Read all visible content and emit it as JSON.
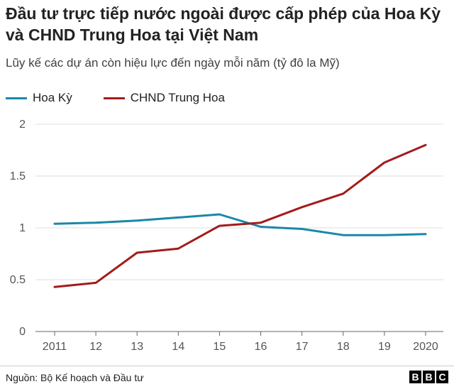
{
  "title": "Đầu tư trực tiếp nước ngoài được cấp phép của Hoa Kỳ và CHND Trung Hoa tại Việt Nam",
  "subtitle": "Lũy kế các dự án còn hiệu lực đến ngày mỗi năm (tỷ đô la Mỹ)",
  "source": "Nguồn: Bộ Kế hoạch và Đầu tư",
  "brand": [
    "B",
    "B",
    "C"
  ],
  "chart_data": {
    "type": "line",
    "title": "Đầu tư trực tiếp nước ngoài được cấp phép của Hoa Kỳ và CHND Trung Hoa tại Việt Nam",
    "subtitle": "Lũy kế các dự án còn hiệu lực đến ngày mỗi năm (tỷ đô la Mỹ)",
    "x": [
      2011,
      2012,
      2013,
      2014,
      2015,
      2016,
      2017,
      2018,
      2019,
      2020
    ],
    "x_tick_labels": [
      "2011",
      "12",
      "13",
      "14",
      "15",
      "16",
      "17",
      "18",
      "19",
      "2020"
    ],
    "y_ticks": [
      0,
      0.5,
      1,
      1.5,
      2
    ],
    "y_tick_labels": [
      "0",
      "0.5",
      "1",
      "1.5",
      "2"
    ],
    "ylim": [
      0,
      2
    ],
    "grid": "horizontal",
    "legend_position": "top-left",
    "series": [
      {
        "name": "Hoa Kỳ",
        "color": "#1a87a8",
        "values": [
          1.04,
          1.05,
          1.07,
          1.1,
          1.13,
          1.01,
          0.99,
          0.93,
          0.93,
          0.94
        ]
      },
      {
        "name": "CHND Trung Hoa",
        "color": "#a31b1b",
        "values": [
          0.43,
          0.47,
          0.76,
          0.8,
          1.02,
          1.05,
          1.2,
          1.33,
          1.63,
          1.8
        ]
      }
    ]
  }
}
